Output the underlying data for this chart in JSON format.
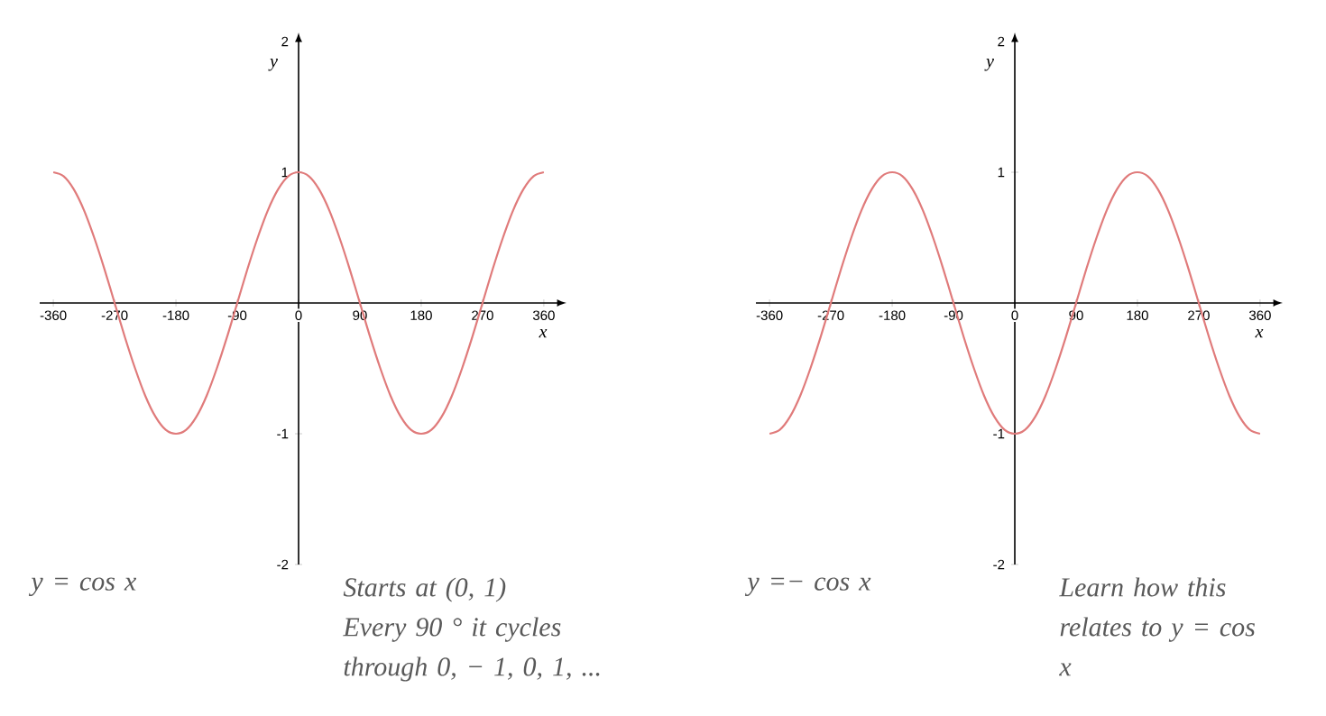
{
  "chart_data": [
    {
      "type": "line",
      "xlabel": "x",
      "ylabel": "y",
      "x": [
        -360,
        -345,
        -330,
        -315,
        -300,
        -285,
        -270,
        -255,
        -240,
        -225,
        -210,
        -195,
        -180,
        -165,
        -150,
        -135,
        -120,
        -105,
        -90,
        -75,
        -60,
        -45,
        -30,
        -15,
        0,
        15,
        30,
        45,
        60,
        75,
        90,
        105,
        120,
        135,
        150,
        165,
        180,
        195,
        210,
        225,
        240,
        255,
        270,
        285,
        300,
        315,
        330,
        345,
        360
      ],
      "series": [
        {
          "color": "#e07b7b",
          "values": [
            1,
            0.97,
            0.87,
            0.71,
            0.5,
            0.26,
            0,
            -0.26,
            -0.5,
            -0.71,
            -0.87,
            -0.97,
            -1,
            -0.97,
            -0.87,
            -0.71,
            -0.5,
            -0.26,
            0,
            0.26,
            0.5,
            0.71,
            0.87,
            0.97,
            1,
            0.97,
            0.87,
            0.71,
            0.5,
            0.26,
            0,
            -0.26,
            -0.5,
            -0.71,
            -0.87,
            -0.97,
            -1,
            -0.97,
            -0.87,
            -0.71,
            -0.5,
            -0.26,
            0,
            0.26,
            0.5,
            0.71,
            0.87,
            0.97,
            1
          ]
        }
      ],
      "xlim": [
        -380,
        380
      ],
      "ylim": [
        -2,
        2
      ],
      "xticks": [
        -360,
        -270,
        -180,
        -90,
        0,
        90,
        180,
        270,
        360
      ],
      "yticks": [
        -2,
        -1,
        1,
        2
      ],
      "annotations": [
        "y = cos x",
        "Starts at (0, 1)",
        "Every 90 ° it cycles through 0, − 1, 0, 1, ..."
      ]
    },
    {
      "type": "line",
      "xlabel": "x",
      "ylabel": "y",
      "x": [
        -360,
        -345,
        -330,
        -315,
        -300,
        -285,
        -270,
        -255,
        -240,
        -225,
        -210,
        -195,
        -180,
        -165,
        -150,
        -135,
        -120,
        -105,
        -90,
        -75,
        -60,
        -45,
        -30,
        -15,
        0,
        15,
        30,
        45,
        60,
        75,
        90,
        105,
        120,
        135,
        150,
        165,
        180,
        195,
        210,
        225,
        240,
        255,
        270,
        285,
        300,
        315,
        330,
        345,
        360
      ],
      "series": [
        {
          "color": "#e07b7b",
          "values": [
            -1,
            -0.97,
            -0.87,
            -0.71,
            -0.5,
            -0.26,
            0,
            0.26,
            0.5,
            0.71,
            0.87,
            0.97,
            1,
            0.97,
            0.87,
            0.71,
            0.5,
            0.26,
            0,
            -0.26,
            -0.5,
            -0.71,
            -0.87,
            -0.97,
            -1,
            -0.97,
            -0.87,
            -0.71,
            -0.5,
            -0.26,
            0,
            0.26,
            0.5,
            0.71,
            0.87,
            0.97,
            1,
            0.97,
            0.87,
            0.71,
            0.5,
            0.26,
            0,
            -0.26,
            -0.5,
            -0.71,
            -0.87,
            -0.97,
            -1
          ]
        }
      ],
      "xlim": [
        -380,
        380
      ],
      "ylim": [
        -2,
        2
      ],
      "xticks": [
        -360,
        -270,
        -180,
        -90,
        0,
        90,
        180,
        270,
        360
      ],
      "yticks": [
        -2,
        -1,
        1,
        2
      ],
      "annotations": [
        "y =− cos x",
        "Learn how this relates to y = cos x"
      ]
    }
  ]
}
